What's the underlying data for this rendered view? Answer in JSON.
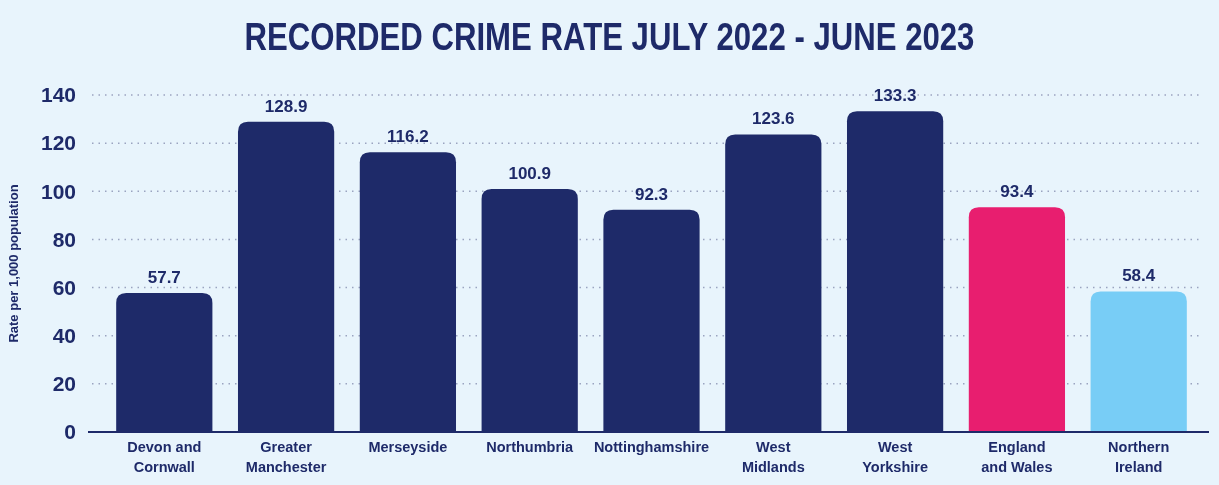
{
  "chart_data": {
    "type": "bar",
    "title": "RECORDED CRIME RATE JULY 2022 - JUNE 2023",
    "ylabel": "Rate per 1,000 population",
    "categories": [
      "Devon and Cornwall",
      "Greater Manchester",
      "Merseyside",
      "Northumbria",
      "Nottinghamshire",
      "West Midlands",
      "West Yorkshire",
      "England and Wales",
      "Northern Ireland"
    ],
    "values": [
      57.7,
      128.9,
      116.2,
      100.9,
      92.3,
      123.6,
      133.3,
      93.4,
      58.4
    ],
    "colors": [
      "#1e2a69",
      "#1e2a69",
      "#1e2a69",
      "#1e2a69",
      "#1e2a69",
      "#1e2a69",
      "#1e2a69",
      "#e81e6f",
      "#78cdf6"
    ],
    "ylim": [
      0,
      140
    ],
    "yticks": [
      0,
      20,
      40,
      60,
      80,
      100,
      120,
      140
    ],
    "grid": "y",
    "data_labels": true
  }
}
